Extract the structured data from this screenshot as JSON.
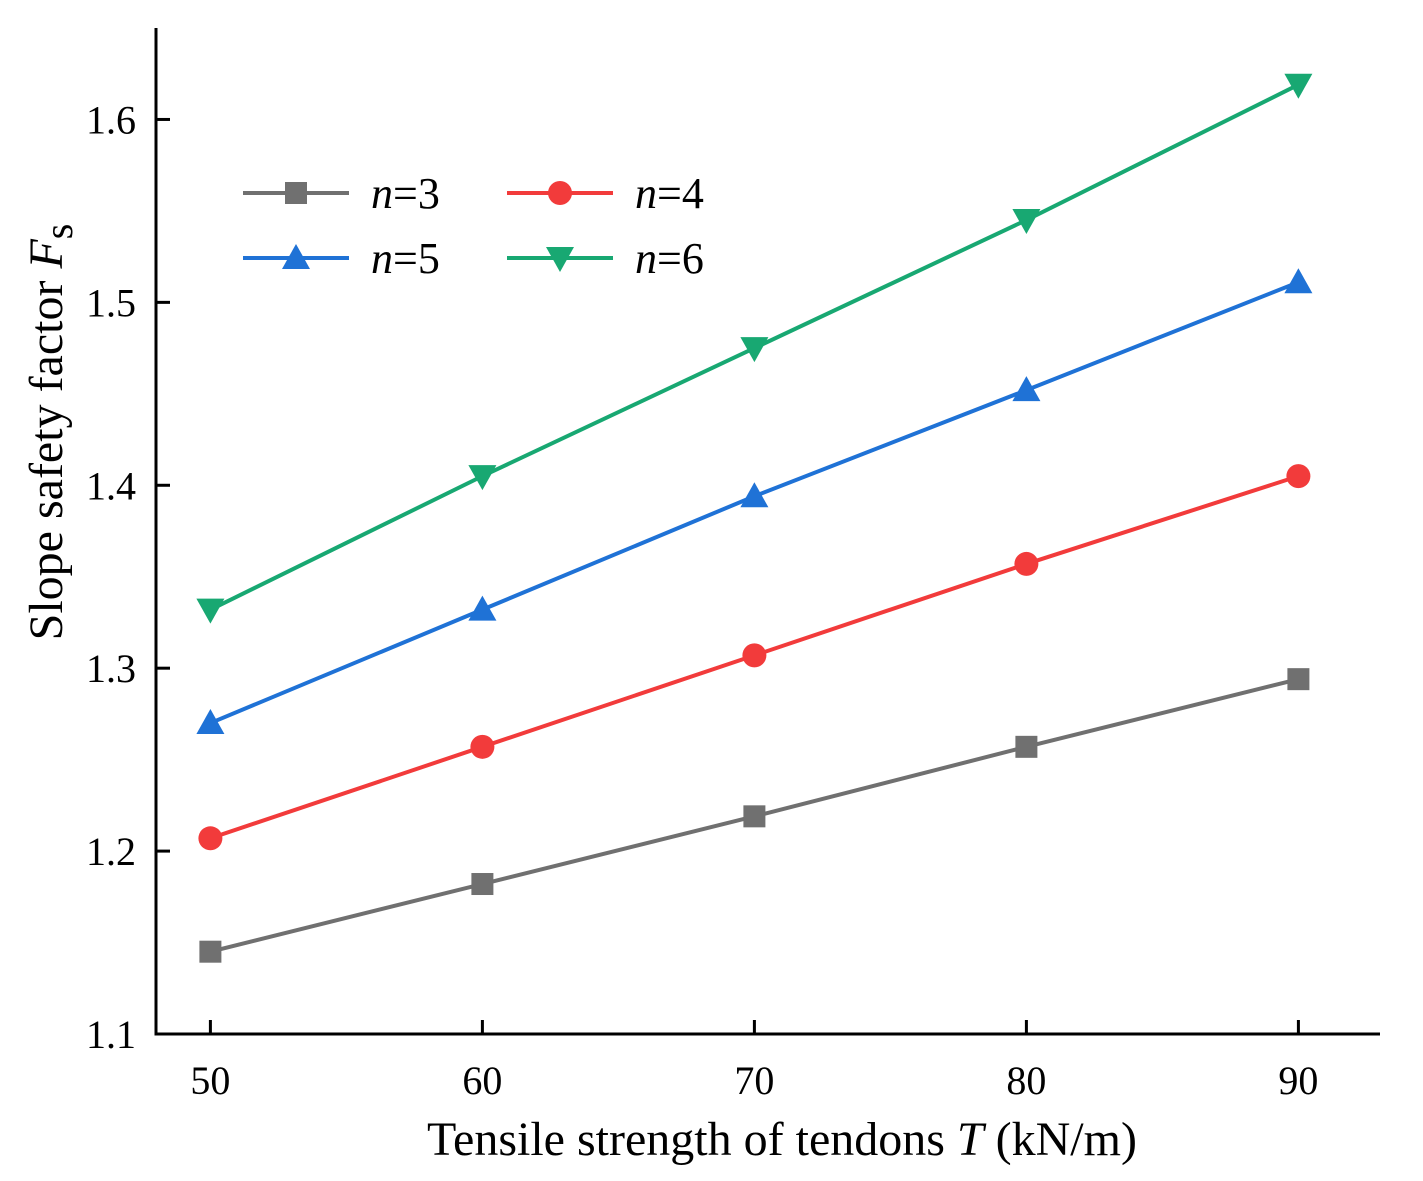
{
  "chart_data": {
    "type": "line",
    "x": [
      50,
      60,
      70,
      80,
      90
    ],
    "series": [
      {
        "name": "n=3",
        "var": "n",
        "eq": "=3",
        "color": "#707070",
        "marker": "square",
        "values": [
          1.145,
          1.182,
          1.219,
          1.257,
          1.294
        ]
      },
      {
        "name": "n=4",
        "var": "n",
        "eq": "=4",
        "color": "#f23b3b",
        "marker": "circle",
        "values": [
          1.207,
          1.257,
          1.307,
          1.357,
          1.405
        ]
      },
      {
        "name": "n=5",
        "var": "n",
        "eq": "=5",
        "color": "#1f72d6",
        "marker": "triangle-up",
        "values": [
          1.27,
          1.332,
          1.394,
          1.452,
          1.511
        ]
      },
      {
        "name": "n=6",
        "var": "n",
        "eq": "=6",
        "color": "#18a872",
        "marker": "triangle-down",
        "values": [
          1.332,
          1.405,
          1.475,
          1.545,
          1.619
        ]
      }
    ],
    "xlim": [
      48,
      93
    ],
    "ylim": [
      1.1,
      1.65
    ],
    "xticks": [
      "50",
      "60",
      "70",
      "80",
      "90"
    ],
    "yticks": [
      "1.1",
      "1.2",
      "1.3",
      "1.4",
      "1.5",
      "1.6"
    ],
    "xlabel": {
      "text": "Tensile strength of tendons ",
      "var": "T",
      "unit": " (kN/m)"
    },
    "ylabel": {
      "text": "Slope safety factor ",
      "var": "F",
      "sub": "s"
    },
    "legend_position": "top-left",
    "grid": false
  }
}
